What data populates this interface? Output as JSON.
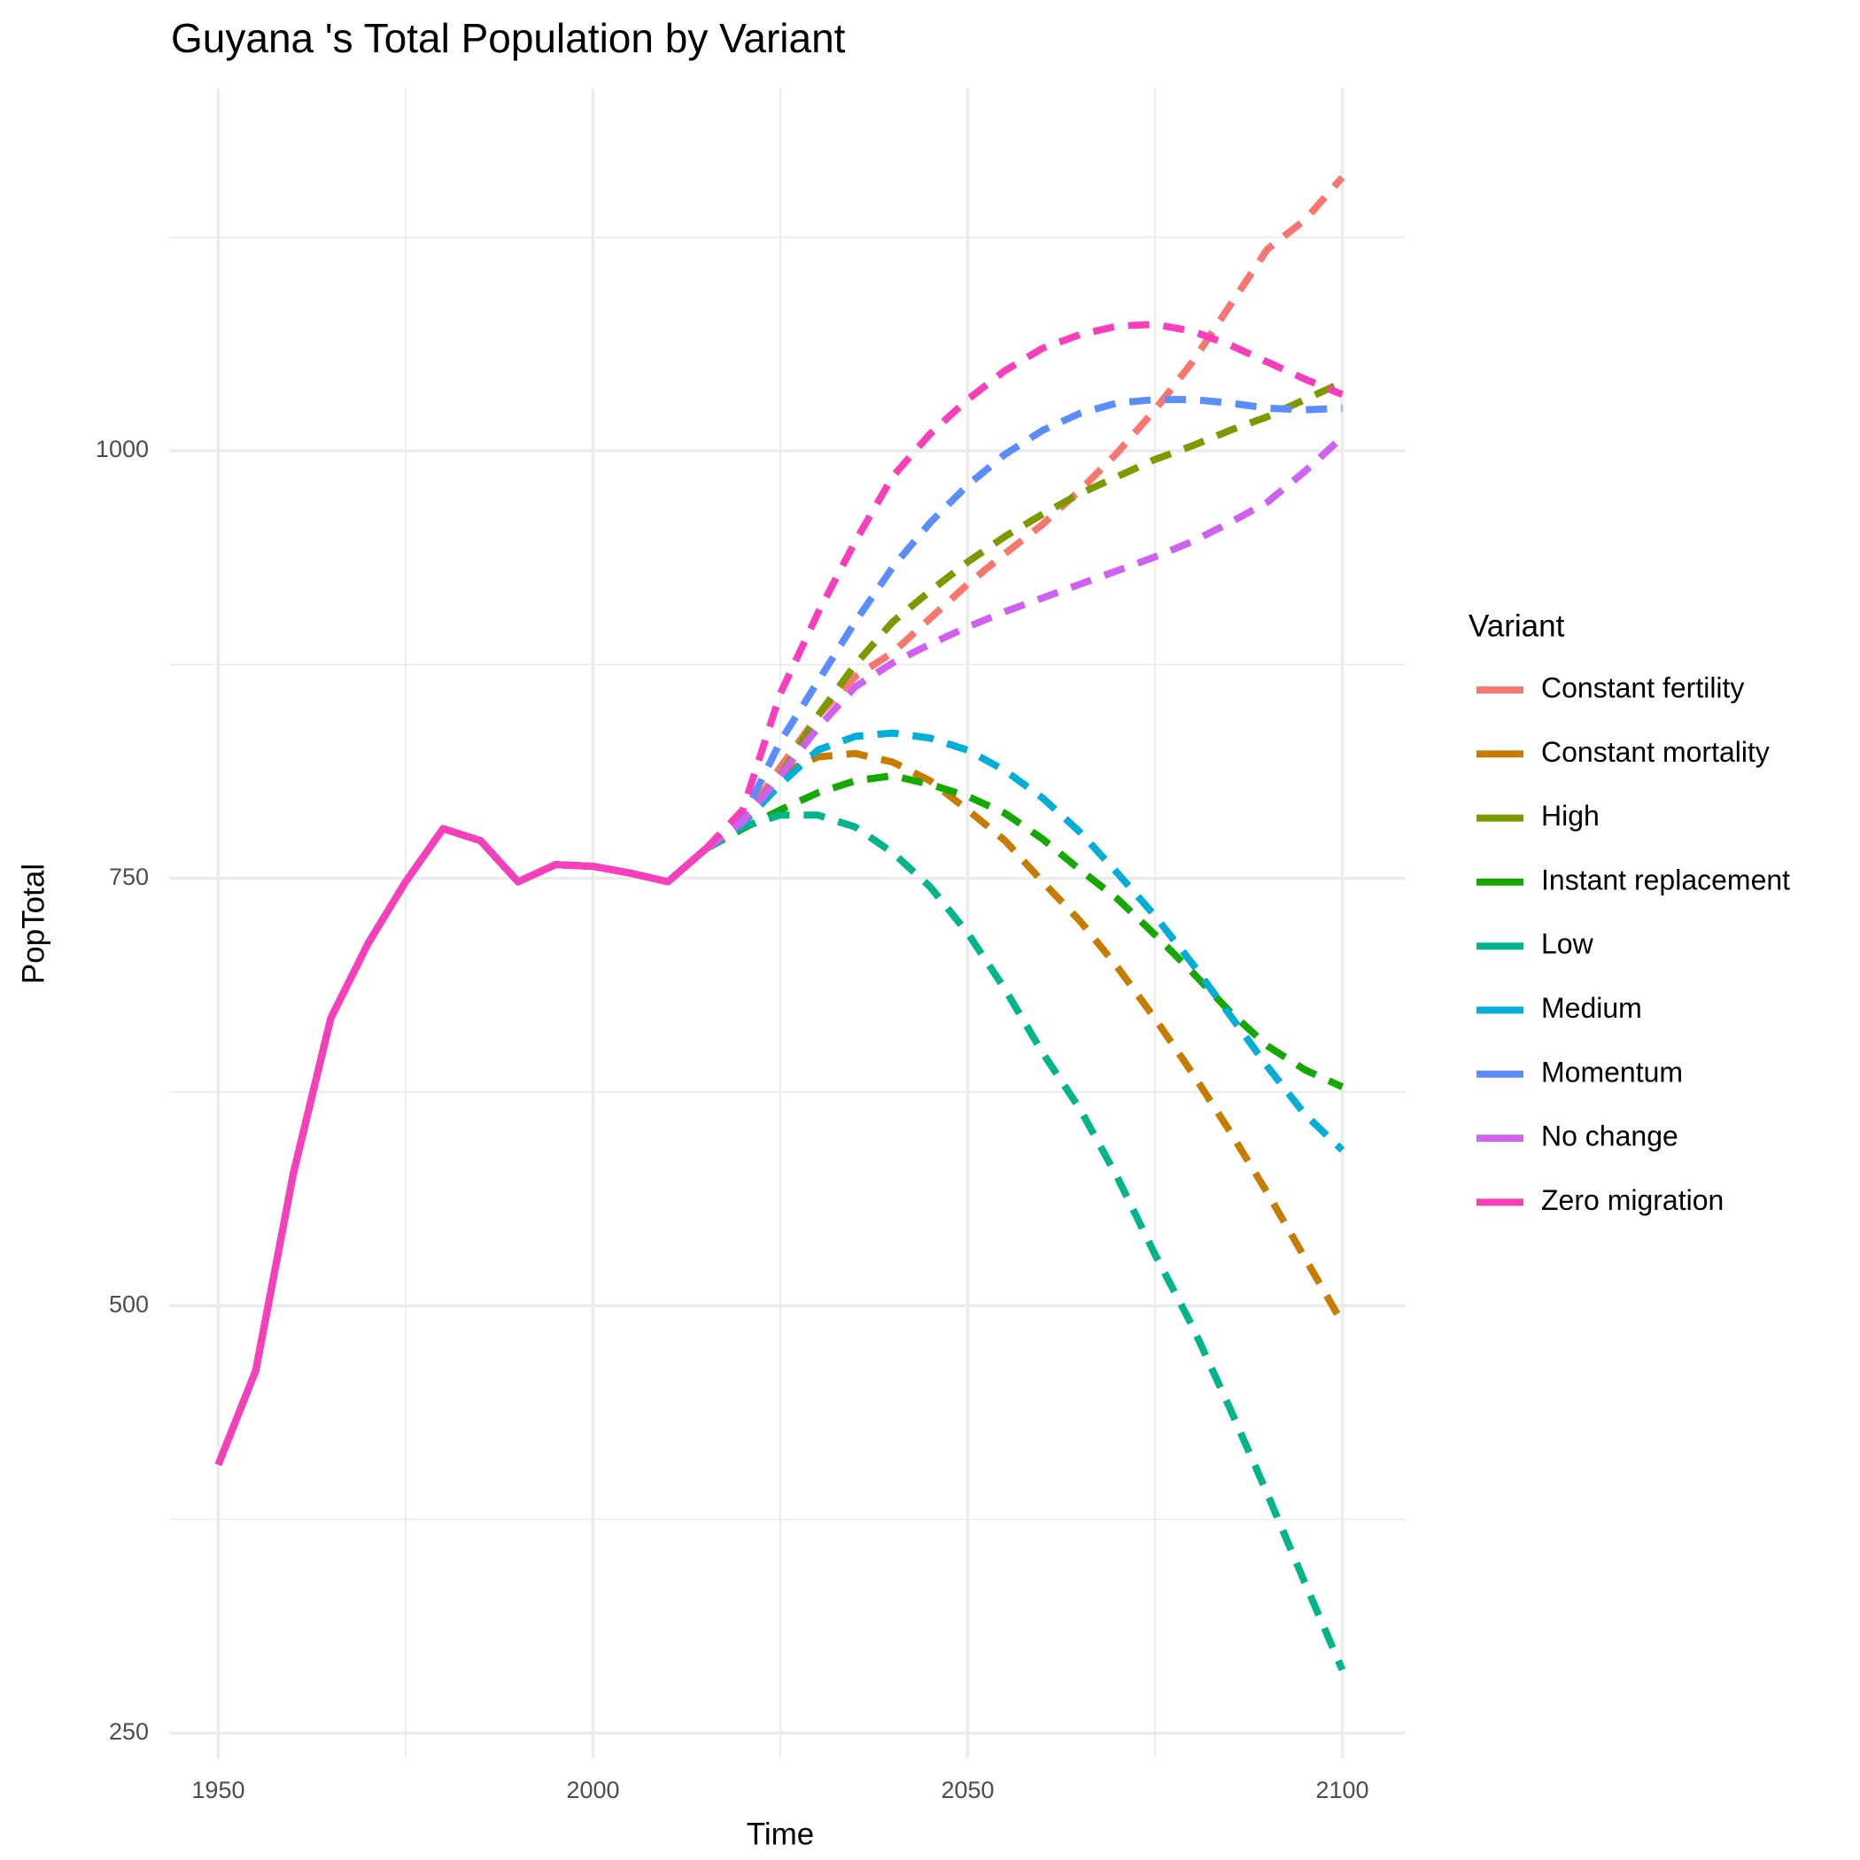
{
  "chart_data": {
    "type": "line",
    "title": "Guyana 's Total Population by Variant",
    "x_label": "Time",
    "y_label": "PopTotal",
    "legend_title": "Variant",
    "legend_position": "right",
    "grid": true,
    "projection_start": 2015,
    "xlim": [
      1942.5,
      2107.5
    ],
    "xticks": [
      1950,
      2000,
      2050,
      2100
    ],
    "xminor": [
      1975,
      2025,
      2075
    ],
    "ylim": [
      239,
      1200
    ],
    "yticks": [
      250,
      500,
      750,
      1000
    ],
    "yminor": [
      375,
      625,
      875,
      1125
    ],
    "x": [
      1950,
      1955,
      1960,
      1965,
      1970,
      1975,
      1980,
      1985,
      1990,
      1995,
      2000,
      2005,
      2010,
      2015,
      2020,
      2025,
      2030,
      2035,
      2040,
      2045,
      2050,
      2055,
      2060,
      2065,
      2070,
      2075,
      2080,
      2085,
      2090,
      2095,
      2100
    ],
    "series": [
      {
        "name": "Constant fertility",
        "color": "#f8766d",
        "values": [
          407,
          462,
          577,
          668,
          712,
          748,
          779,
          772,
          748,
          758,
          757,
          753,
          748,
          767,
          783,
          815,
          845,
          868,
          882,
          902,
          922,
          940,
          957,
          977,
          999,
          1024,
          1052,
          1085,
          1118,
          1135,
          1160
        ]
      },
      {
        "name": "Constant mortality",
        "color": "#c77c00",
        "values": [
          407,
          462,
          577,
          668,
          712,
          748,
          779,
          772,
          748,
          758,
          757,
          753,
          748,
          767,
          783,
          811,
          821,
          823,
          818,
          807,
          790,
          772,
          748,
          725,
          698,
          668,
          636,
          602,
          566,
          528,
          490
        ]
      },
      {
        "name": "High",
        "color": "#7c9a00",
        "values": [
          407,
          462,
          577,
          668,
          712,
          748,
          779,
          772,
          748,
          758,
          757,
          753,
          748,
          767,
          783,
          810,
          845,
          875,
          900,
          918,
          935,
          950,
          963,
          975,
          985,
          995,
          1003,
          1012,
          1020,
          1030,
          1040
        ]
      },
      {
        "name": "Instant replacement",
        "color": "#14a800",
        "values": [
          407,
          462,
          577,
          668,
          712,
          748,
          779,
          772,
          748,
          758,
          757,
          753,
          748,
          767,
          779,
          790,
          800,
          807,
          810,
          805,
          798,
          788,
          773,
          755,
          738,
          717,
          695,
          672,
          652,
          638,
          628
        ]
      },
      {
        "name": "Low",
        "color": "#00b48c",
        "values": [
          407,
          462,
          577,
          668,
          712,
          748,
          779,
          772,
          748,
          758,
          757,
          753,
          748,
          767,
          780,
          787,
          787,
          780,
          765,
          745,
          718,
          685,
          648,
          615,
          575,
          530,
          488,
          440,
          390,
          338,
          287
        ]
      },
      {
        "name": "Medium",
        "color": "#00aed8",
        "values": [
          407,
          462,
          577,
          668,
          712,
          748,
          779,
          772,
          748,
          758,
          757,
          753,
          748,
          767,
          782,
          805,
          825,
          833,
          835,
          832,
          825,
          813,
          797,
          777,
          753,
          728,
          700,
          670,
          640,
          612,
          591
        ]
      },
      {
        "name": "Momentum",
        "color": "#5b8dff",
        "values": [
          407,
          462,
          577,
          668,
          712,
          748,
          779,
          772,
          748,
          758,
          757,
          753,
          748,
          767,
          785,
          830,
          865,
          900,
          932,
          958,
          980,
          998,
          1012,
          1022,
          1028,
          1030,
          1030,
          1028,
          1025,
          1024,
          1025
        ]
      },
      {
        "name": "No change",
        "color": "#d060f0",
        "values": [
          407,
          462,
          577,
          668,
          712,
          748,
          779,
          772,
          748,
          758,
          757,
          753,
          748,
          767,
          783,
          810,
          838,
          862,
          876,
          887,
          897,
          906,
          914,
          922,
          930,
          938,
          947,
          958,
          970,
          988,
          1008
        ]
      },
      {
        "name": "Zero migration",
        "color": "#f93ebb",
        "values": [
          407,
          462,
          577,
          668,
          712,
          748,
          779,
          772,
          748,
          758,
          757,
          753,
          748,
          767,
          790,
          858,
          905,
          947,
          985,
          1010,
          1030,
          1047,
          1060,
          1068,
          1073,
          1074,
          1070,
          1062,
          1052,
          1042,
          1033
        ]
      }
    ]
  }
}
